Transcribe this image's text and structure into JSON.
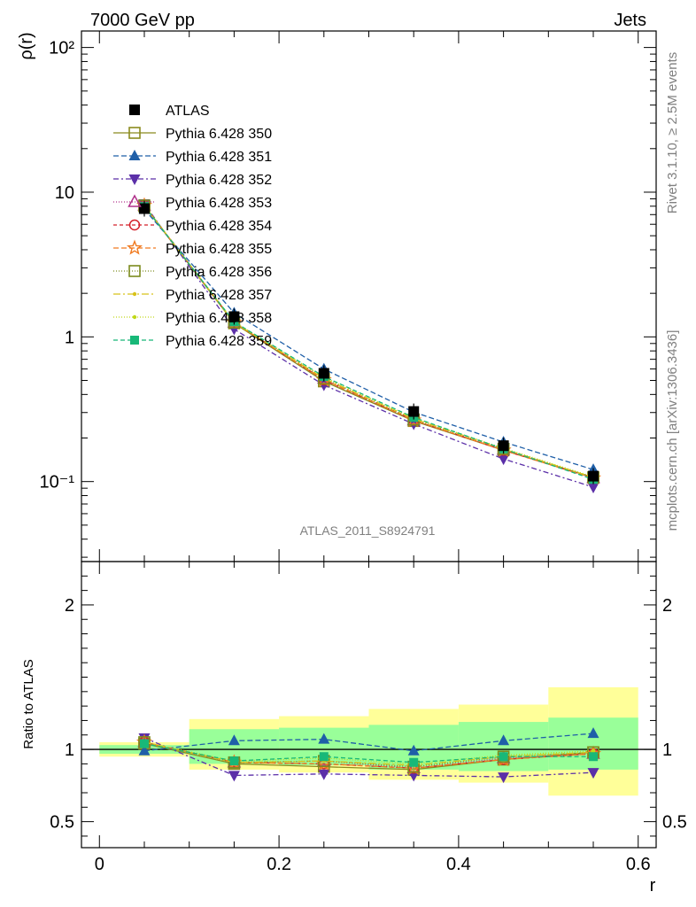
{
  "header": {
    "left": "7000 GeV pp",
    "right": "Jets"
  },
  "side_text": {
    "rivet": "Rivet 3.1.10, ≥ 2.5M events",
    "mcplots": "mcplots.cern.ch [arXiv:1306.3436]"
  },
  "watermark": "ATLAS_2011_S8924791",
  "chart_data": {
    "type": "line",
    "ylabel": "ρ(r)",
    "ratio_ylabel": "Ratio to ATLAS",
    "xlabel": "r",
    "x": [
      0.05,
      0.15,
      0.25,
      0.35,
      0.45,
      0.55
    ],
    "x_edges": [
      0.0,
      0.1,
      0.2,
      0.3,
      0.4,
      0.5,
      0.6
    ],
    "xlim": [
      -0.02,
      0.62
    ],
    "ylim": [
      0.028,
      130
    ],
    "ylog": true,
    "ratio_ylim": [
      0.32,
      2.3
    ],
    "xticks": [
      "0",
      "0.2",
      "0.4",
      "0.6"
    ],
    "yticks_main": [
      "10⁻¹",
      "1",
      "10",
      "10²"
    ],
    "yticks_ratio": [
      "0.5",
      "1",
      "2"
    ],
    "atlas": {
      "name": "ATLAS",
      "values": [
        7.7,
        1.38,
        0.56,
        0.305,
        0.177,
        0.109
      ]
    },
    "bands": {
      "green": [
        [
          0.97,
          1.03
        ],
        [
          0.9,
          1.14
        ],
        [
          0.89,
          1.15
        ],
        [
          0.86,
          1.17
        ],
        [
          0.85,
          1.19
        ],
        [
          0.86,
          1.22
        ]
      ],
      "yellow": [
        [
          0.95,
          1.05
        ],
        [
          0.86,
          1.21
        ],
        [
          0.84,
          1.23
        ],
        [
          0.79,
          1.28
        ],
        [
          0.77,
          1.31
        ],
        [
          0.68,
          1.43
        ]
      ]
    },
    "series": [
      {
        "name": "Pythia 6.428 350",
        "color": "#8b8b1e",
        "marker": "open-square",
        "dash": "",
        "ratio": [
          1.04,
          0.9,
          0.88,
          0.86,
          0.93,
          0.98
        ]
      },
      {
        "name": "Pythia 6.428 351",
        "color": "#1f5fa8",
        "marker": "tri-up",
        "dash": "6,3",
        "ratio": [
          0.99,
          1.06,
          1.07,
          0.99,
          1.06,
          1.11
        ]
      },
      {
        "name": "Pythia 6.428 352",
        "color": "#5b2fa8",
        "marker": "tri-down",
        "dash": "6,3,2,3",
        "ratio": [
          1.08,
          0.82,
          0.83,
          0.82,
          0.81,
          0.84
        ]
      },
      {
        "name": "Pythia 6.428 353",
        "color": "#b0308a",
        "marker": "open-tri-up",
        "dash": "1,2",
        "ratio": [
          1.05,
          0.91,
          0.92,
          0.87,
          0.94,
          0.97
        ]
      },
      {
        "name": "Pythia 6.428 354",
        "color": "#d4202a",
        "marker": "open-circle",
        "dash": "4,3",
        "ratio": [
          1.05,
          0.91,
          0.9,
          0.87,
          0.93,
          0.97
        ]
      },
      {
        "name": "Pythia 6.428 355",
        "color": "#f07a20",
        "marker": "open-star",
        "dash": "6,3",
        "ratio": [
          1.05,
          0.91,
          0.9,
          0.87,
          0.93,
          0.97
        ]
      },
      {
        "name": "Pythia 6.428 356",
        "color": "#7c8b1e",
        "marker": "open-square",
        "dash": "1,2",
        "ratio": [
          1.05,
          0.91,
          0.92,
          0.88,
          0.95,
          0.98
        ]
      },
      {
        "name": "Pythia 6.428 357",
        "color": "#d8c21a",
        "marker": "dot",
        "dash": "8,3,2,3",
        "ratio": [
          1.05,
          0.91,
          0.92,
          0.89,
          0.95,
          0.98
        ]
      },
      {
        "name": "Pythia 6.428 358",
        "color": "#c0d818",
        "marker": "dot",
        "dash": "1,2",
        "ratio": [
          1.05,
          0.92,
          0.94,
          0.9,
          0.96,
          0.99
        ]
      },
      {
        "name": "Pythia 6.428 359",
        "color": "#18b878",
        "marker": "filled-square",
        "dash": "5,3",
        "ratio": [
          1.04,
          0.92,
          0.95,
          0.91,
          0.95,
          0.95
        ]
      }
    ]
  }
}
